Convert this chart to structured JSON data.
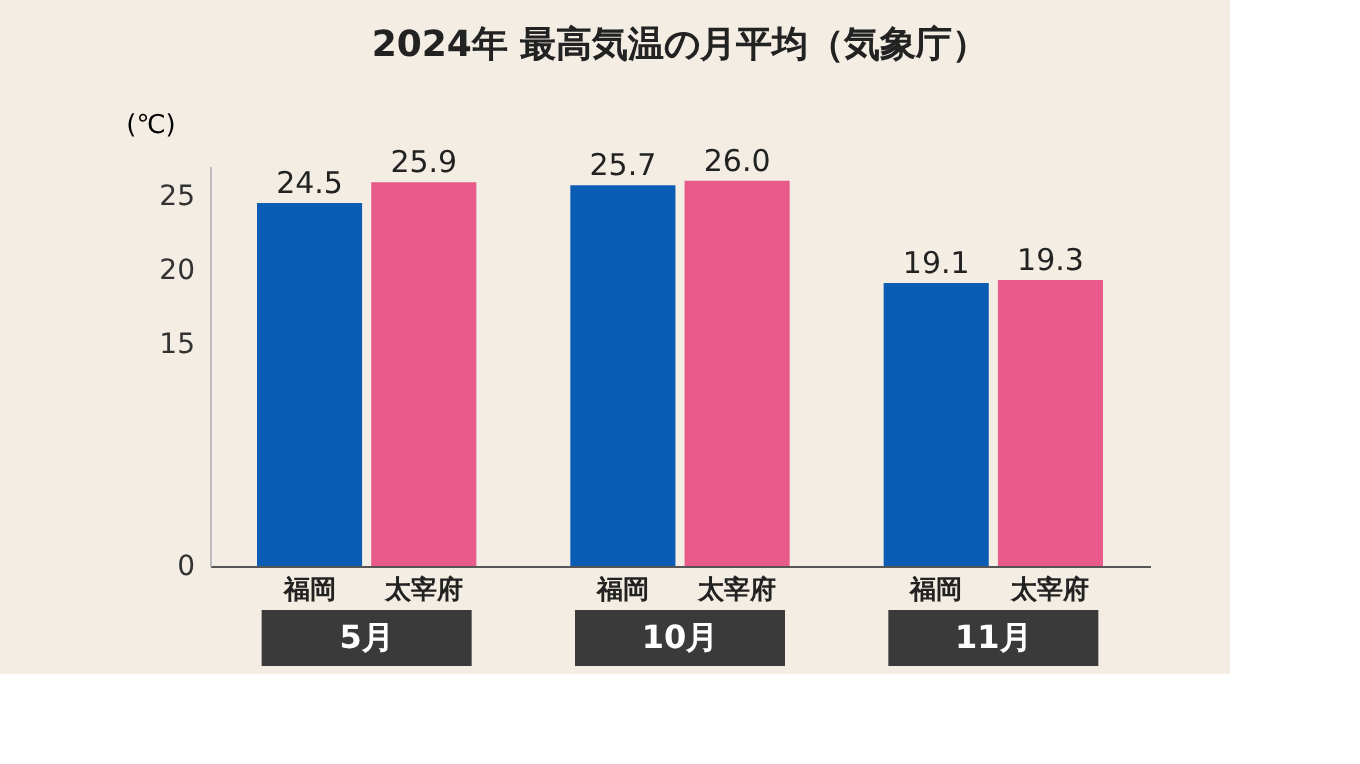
{
  "chart_data": {
    "type": "bar",
    "title": "2024年 最高気温の月平均（気象庁）",
    "ylabel": "(℃)",
    "categories": [
      "5月",
      "10月",
      "11月"
    ],
    "series": [
      {
        "name": "福岡",
        "color": "#0b5cb5",
        "values": [
          24.5,
          25.7,
          19.1
        ],
        "value_labels": [
          "24.5",
          "25.7",
          "19.1"
        ]
      },
      {
        "name": "太宰府",
        "color": "#e85a8a",
        "values": [
          25.9,
          26.0,
          19.3
        ],
        "value_labels": [
          "25.9",
          "26.0",
          "19.3"
        ]
      }
    ],
    "ylim": [
      0,
      27
    ],
    "yticks": [
      0,
      15,
      20,
      25
    ],
    "grid": false
  }
}
